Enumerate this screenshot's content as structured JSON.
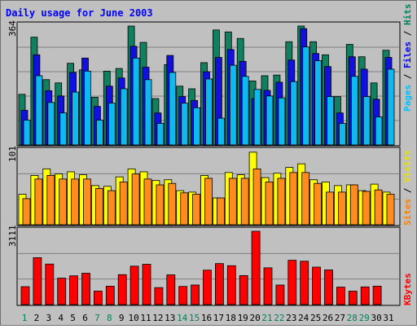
{
  "chart_data": [
    {
      "type": "bar",
      "title": "Daily usage for June 2003",
      "categories": [
        "1",
        "2",
        "3",
        "4",
        "5",
        "6",
        "7",
        "8",
        "9",
        "10",
        "11",
        "12",
        "13",
        "14",
        "15",
        "16",
        "17",
        "18",
        "19",
        "20",
        "21",
        "22",
        "23",
        "24",
        "25",
        "26",
        "27",
        "28",
        "29",
        "30",
        "31"
      ],
      "weekend_days": [
        "1",
        "7",
        "8",
        "14",
        "15",
        "21",
        "22",
        "28",
        "29"
      ],
      "ymax_label": "364",
      "ylim": [
        0,
        364
      ],
      "legend": [
        {
          "label": "Hits",
          "color": "#00805c"
        },
        {
          "label": "Files",
          "color": "#0000ff"
        },
        {
          "label": "Pages",
          "color": "#00c0ff"
        }
      ],
      "legend_separator": " / ",
      "series": [
        {
          "name": "Hits",
          "color": "#108060",
          "values": [
            155,
            330,
            200,
            190,
            250,
            230,
            146,
            226,
            234,
            364,
            314,
            142,
            246,
            180,
            172,
            252,
            352,
            346,
            326,
            196,
            212,
            214,
            316,
            364,
            316,
            276,
            148,
            308,
            270,
            190,
            290
          ]
        },
        {
          "name": "Files",
          "color": "#1010e0",
          "values": [
            106,
            276,
            166,
            150,
            222,
            266,
            118,
            180,
            205,
            302,
            238,
            98,
            274,
            148,
            136,
            224,
            268,
            292,
            256,
            142,
            167,
            192,
            260,
            356,
            280,
            240,
            98,
            270,
            232,
            140,
            268
          ]
        },
        {
          "name": "Pages",
          "color": "#10b8f0",
          "values": [
            76,
            212,
            130,
            98,
            162,
            226,
            76,
            128,
            172,
            266,
            200,
            66,
            222,
            128,
            114,
            202,
            82,
            244,
            210,
            170,
            150,
            144,
            194,
            300,
            258,
            148,
            66,
            210,
            148,
            86,
            232
          ]
        }
      ]
    },
    {
      "type": "bar",
      "categories": [
        "1",
        "2",
        "3",
        "4",
        "5",
        "6",
        "7",
        "8",
        "9",
        "10",
        "11",
        "12",
        "13",
        "14",
        "15",
        "16",
        "17",
        "18",
        "19",
        "20",
        "21",
        "22",
        "23",
        "24",
        "25",
        "26",
        "27",
        "28",
        "29",
        "30",
        "31"
      ],
      "ymax_label": "101",
      "ylim": [
        0,
        101
      ],
      "legend": [
        {
          "label": "Visits",
          "color": "#e8e000"
        },
        {
          "label": "Sites",
          "color": "#ff8000"
        }
      ],
      "legend_separator": " / ",
      "series": [
        {
          "name": "Visits",
          "color": "#ffff00",
          "values": [
            42,
            68,
            77,
            70,
            73,
            69,
            54,
            53,
            66,
            77,
            73,
            61,
            62,
            47,
            45,
            68,
            37,
            72,
            69,
            100,
            65,
            71,
            79,
            84,
            62,
            59,
            54,
            55,
            47,
            56,
            45
          ]
        },
        {
          "name": "Sites",
          "color": "#ff8c1c",
          "values": [
            36,
            63,
            68,
            63,
            63,
            63,
            50,
            47,
            59,
            70,
            63,
            55,
            57,
            44,
            42,
            64,
            37,
            64,
            64,
            77,
            59,
            64,
            72,
            72,
            57,
            45,
            45,
            55,
            46,
            48,
            42
          ]
        }
      ]
    },
    {
      "type": "bar",
      "categories": [
        "1",
        "2",
        "3",
        "4",
        "5",
        "6",
        "7",
        "8",
        "9",
        "10",
        "11",
        "12",
        "13",
        "14",
        "15",
        "16",
        "17",
        "18",
        "19",
        "20",
        "21",
        "22",
        "23",
        "24",
        "25",
        "26",
        "27",
        "28",
        "29",
        "30",
        "31"
      ],
      "ymax_label": "3111",
      "ylim": [
        0,
        3111
      ],
      "legend": [
        {
          "label": "KBytes",
          "color": "#ff0000"
        }
      ],
      "legend_separator": "",
      "series": [
        {
          "name": "KBytes",
          "color": "#ff0000",
          "values": [
            760,
            1990,
            1720,
            1120,
            1220,
            1330,
            570,
            780,
            1270,
            1630,
            1710,
            720,
            1260,
            770,
            830,
            1460,
            1740,
            1650,
            1230,
            3111,
            1560,
            830,
            1880,
            1840,
            1590,
            1470,
            740,
            570,
            750,
            780,
            0
          ]
        }
      ]
    }
  ]
}
